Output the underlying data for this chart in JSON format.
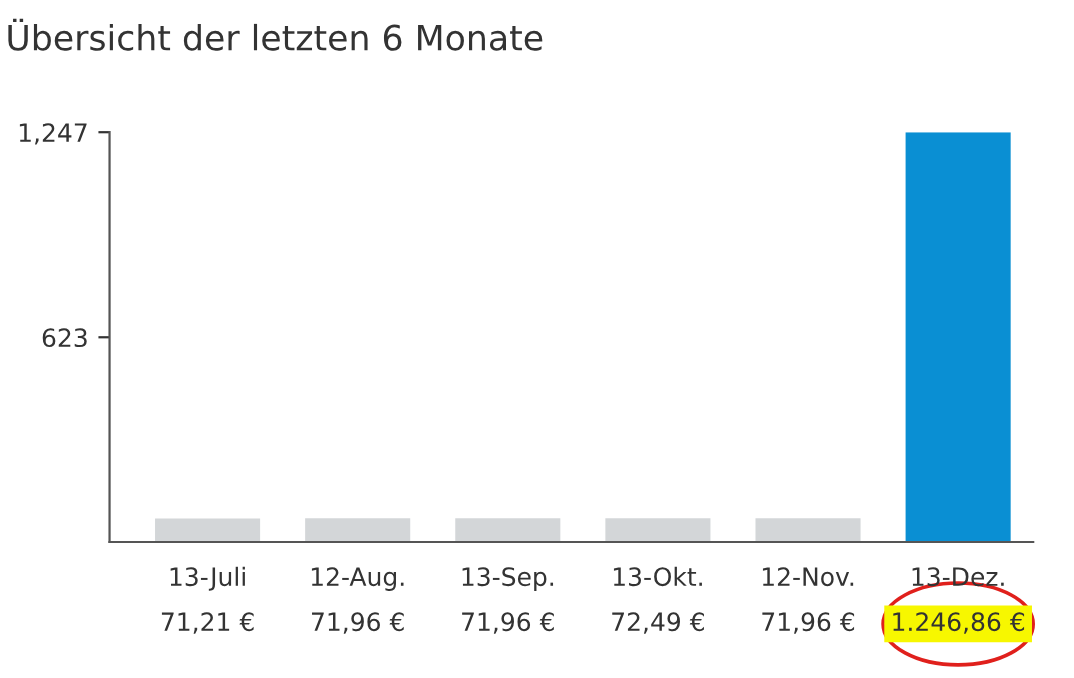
{
  "chart_data": {
    "type": "bar",
    "title": "Übersicht der letzten 6 Monate",
    "categories": [
      "13-Juli",
      "12-Aug.",
      "13-Sep.",
      "13-Okt.",
      "12-Nov.",
      "13-Dez."
    ],
    "values": [
      71.21,
      71.96,
      71.96,
      72.49,
      71.96,
      1246.86
    ],
    "colors": [
      "#d3d6d8",
      "#d3d6d8",
      "#d3d6d8",
      "#d3d6d8",
      "#d3d6d8",
      "#0a8fd3"
    ],
    "value_labels": [
      "71,21 €",
      "71,96 €",
      "71,96 €",
      "72,49 €",
      "71,96 €",
      "1.246,86 €"
    ],
    "ylim": [
      0,
      1247
    ],
    "yticks": [
      {
        "value": 623,
        "label": "623"
      },
      {
        "value": 1247,
        "label": "1,247"
      }
    ],
    "grid": false
  }
}
